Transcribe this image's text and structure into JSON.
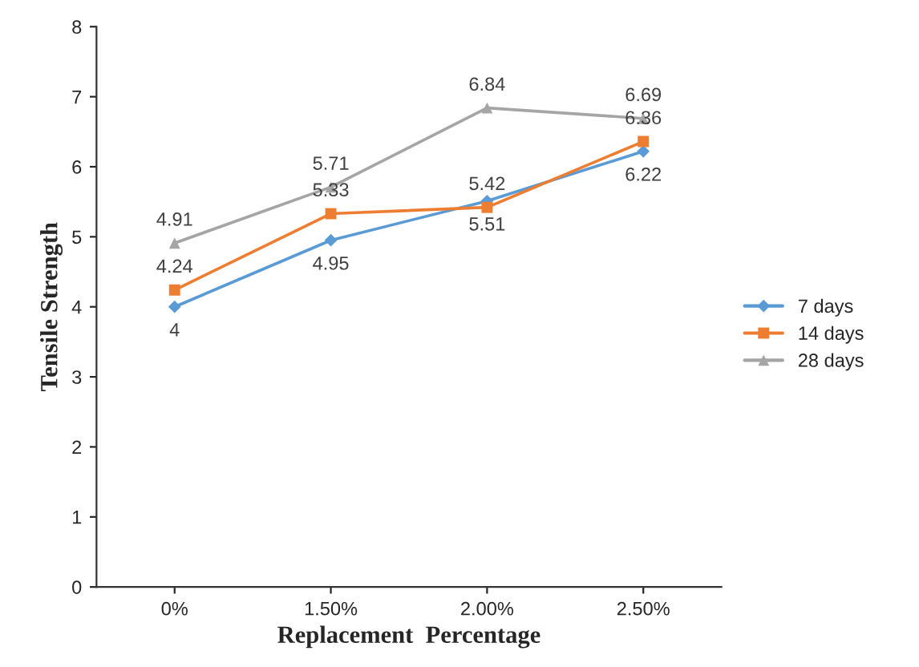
{
  "chart_data": {
    "type": "line",
    "xlabel": "Replacement  Percentage",
    "ylabel": "Tensile Strength",
    "categories": [
      "0%",
      "1.50%",
      "2.00%",
      "2.50%"
    ],
    "series": [
      {
        "name": "7 days",
        "color": "#5b9bd5",
        "marker": "diamond",
        "values": [
          4,
          4.95,
          5.51,
          6.22
        ]
      },
      {
        "name": "14 days",
        "color": "#ed7d31",
        "marker": "square",
        "values": [
          4.24,
          5.33,
          5.42,
          6.36
        ]
      },
      {
        "name": "28 days",
        "color": "#a5a5a5",
        "marker": "triangle",
        "values": [
          4.91,
          5.71,
          6.84,
          6.69
        ]
      }
    ],
    "ylim": [
      0,
      8
    ],
    "yticks": [
      0,
      1,
      2,
      3,
      4,
      5,
      6,
      7,
      8
    ],
    "data_labels": true,
    "legend": "right",
    "grid": false
  }
}
